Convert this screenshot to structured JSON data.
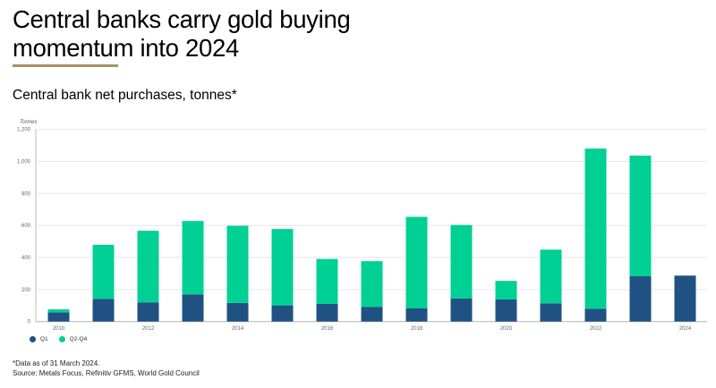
{
  "header": {
    "title_line1": "Central banks carry gold buying",
    "title_line2": "momentum into 2024",
    "rule_color": "#A89266"
  },
  "subtitle": "Central bank net purchases, tonnes*",
  "footer": {
    "note": "*Data as of 31 March 2024.",
    "source": "Source: Metals Focus, Refinitiv GFMS, World Gold Council"
  },
  "chart_data": {
    "type": "bar",
    "stacked": true,
    "title": "Central bank net purchases, tonnes*",
    "ylabel": "Tonnes",
    "xlabel": "",
    "ylim": [
      0,
      1200
    ],
    "yticks": [
      0,
      200,
      400,
      600,
      800,
      1000,
      1200
    ],
    "ytick_labels": [
      "0",
      "200",
      "400",
      "600",
      "800",
      "1,000",
      "1,200"
    ],
    "grid": true,
    "categories": [
      "2010",
      "2011",
      "2012",
      "2013",
      "2014",
      "2015",
      "2016",
      "2017",
      "2018",
      "2019",
      "2020",
      "2021",
      "2022",
      "2023",
      "2024"
    ],
    "xtick_labels": [
      "2010",
      "",
      "2012",
      "",
      "2014",
      "",
      "2016",
      "",
      "2018",
      "",
      "2020",
      "",
      "2022",
      "",
      "2024"
    ],
    "series": [
      {
        "name": "Q1",
        "color": "#1F5283",
        "values": [
          58,
          142,
          120,
          170,
          116,
          101,
          110,
          92,
          82,
          144,
          138,
          114,
          80,
          283,
          287
        ]
      },
      {
        "name": "Q2-Q4",
        "color": "#00D094",
        "values": [
          19,
          337,
          447,
          458,
          482,
          477,
          281,
          285,
          572,
          459,
          116,
          335,
          1000,
          753,
          0
        ]
      }
    ],
    "legend_position": "bottom-left"
  }
}
